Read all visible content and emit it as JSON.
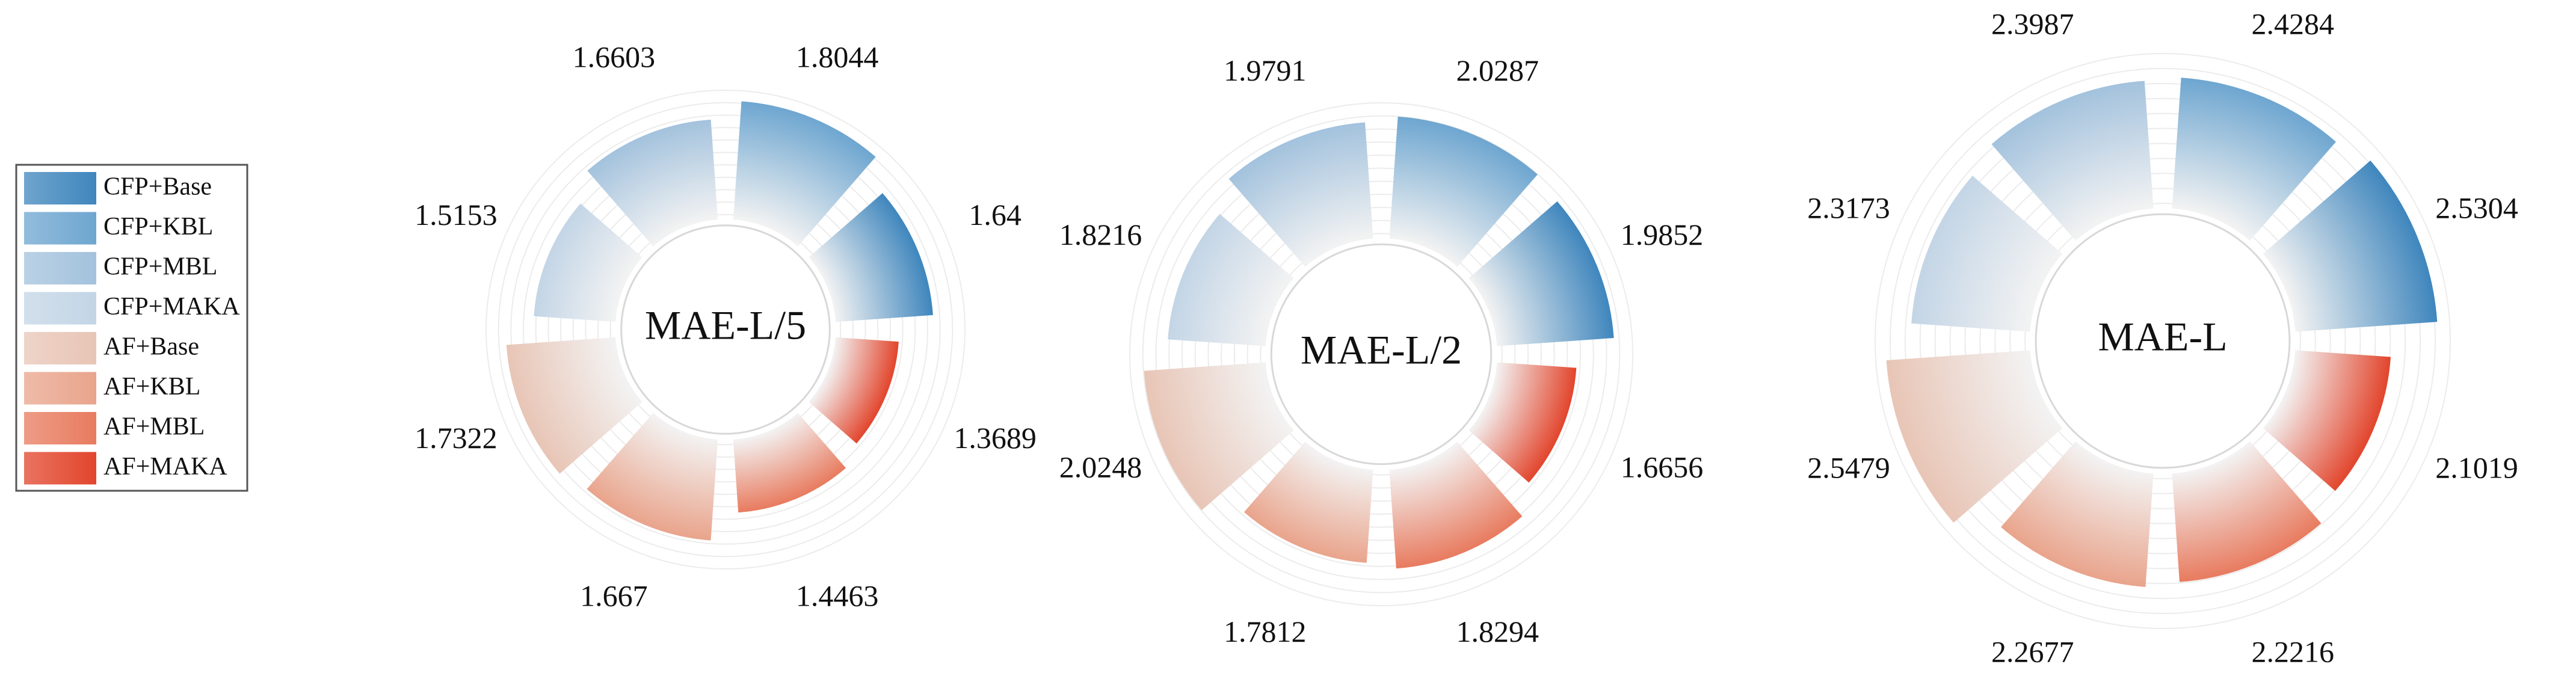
{
  "legend": {
    "labels": [
      "CFP+Base",
      "CFP+KBL",
      "CFP+MBL",
      "CFP+MAKA",
      "AF+Base",
      "AF+KBL",
      "AF+MBL",
      "AF+MAKA"
    ],
    "colors": [
      "#3f86bd",
      "#6ea6d0",
      "#a3c2dd",
      "#c3d5e6",
      "#e8c5b6",
      "#e9a48c",
      "#e87b5f",
      "#e2452c"
    ]
  },
  "chart_data": [
    {
      "type": "polar-bar",
      "title": "MAE-L/5",
      "values": [
        1.64,
        1.8044,
        1.6603,
        1.5153,
        1.7322,
        1.667,
        1.4463,
        1.3689
      ],
      "rlim": [
        0,
        1.85
      ]
    },
    {
      "type": "polar-bar",
      "title": "MAE-L/2",
      "values": [
        1.9852,
        2.0287,
        1.9791,
        1.8216,
        2.0248,
        1.7812,
        1.8294,
        1.6656
      ],
      "rlim": [
        0,
        2.1
      ]
    },
    {
      "type": "polar-bar",
      "title": "MAE-L",
      "values": [
        2.5304,
        2.4284,
        2.3987,
        2.3173,
        2.5479,
        2.2677,
        2.2216,
        2.1019
      ],
      "rlim": [
        0,
        2.6
      ]
    }
  ]
}
